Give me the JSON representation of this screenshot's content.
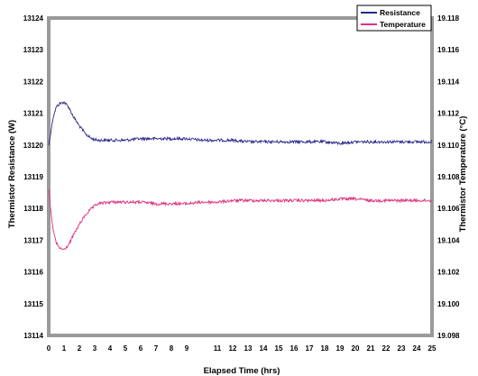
{
  "chart_data": {
    "type": "line",
    "title": "",
    "xlabel": "Elapsed Time (hrs)",
    "ylabel_left": "Thermistor Resistance (W)",
    "ylabel_right": "Thermistor Temperature (°C)",
    "xlim": [
      0,
      25
    ],
    "ylim_left": [
      13114,
      13124
    ],
    "ylim_right": [
      19.098,
      19.118
    ],
    "x_ticks": [
      "0",
      "1",
      "2",
      "3",
      "4",
      "5",
      "6",
      "7",
      "8",
      "9",
      "11",
      "12",
      "13",
      "14",
      "15",
      "16",
      "17",
      "18",
      "19",
      "20",
      "21",
      "22",
      "23",
      "24",
      "25"
    ],
    "x_tick_values": [
      0,
      1,
      2,
      3,
      4,
      5,
      6,
      7,
      8,
      9,
      11,
      12,
      13,
      14,
      15,
      16,
      17,
      18,
      19,
      20,
      21,
      22,
      23,
      24,
      25
    ],
    "y_ticks_left": [
      "13114",
      "13115",
      "13116",
      "13117",
      "13118",
      "13119",
      "13120",
      "13121",
      "13122",
      "13123",
      "13124"
    ],
    "y_ticks_right": [
      "19.098",
      "19.100",
      "19.102",
      "19.104",
      "19.106",
      "19.108",
      "19.110",
      "19.112",
      "19.114",
      "19.116",
      "19.118"
    ],
    "grid": false,
    "legend_position": "top-right",
    "series": [
      {
        "name": "Resistance",
        "axis": "left",
        "color": "#2a2a8a",
        "x": [
          0,
          0.1,
          0.2,
          0.3,
          0.5,
          0.7,
          1.0,
          1.3,
          1.6,
          2.0,
          2.4,
          2.8,
          3.2,
          4,
          5,
          6,
          7,
          8,
          9,
          10,
          11,
          12,
          13,
          14,
          15,
          16,
          17,
          18,
          19,
          20,
          21,
          22,
          23,
          24,
          25
        ],
        "y": [
          13120.0,
          13120.3,
          13120.6,
          13120.9,
          13121.2,
          13121.3,
          13121.35,
          13121.2,
          13120.9,
          13120.6,
          13120.35,
          13120.2,
          13120.15,
          13120.15,
          13120.15,
          13120.2,
          13120.2,
          13120.2,
          13120.2,
          13120.15,
          13120.15,
          13120.15,
          13120.1,
          13120.1,
          13120.1,
          13120.1,
          13120.1,
          13120.1,
          13120.05,
          13120.1,
          13120.1,
          13120.1,
          13120.1,
          13120.1,
          13120.1
        ]
      },
      {
        "name": "Temperature",
        "axis": "right",
        "color": "#e0317f",
        "x": [
          0,
          0.1,
          0.2,
          0.3,
          0.5,
          0.7,
          1.0,
          1.3,
          1.6,
          2.0,
          2.4,
          2.8,
          3.2,
          4,
          5,
          6,
          7,
          8,
          9,
          10,
          11,
          12,
          13,
          14,
          15,
          16,
          17,
          18,
          19,
          20,
          21,
          22,
          23,
          24,
          25
        ],
        "y": [
          19.1072,
          19.1062,
          19.1053,
          19.1046,
          19.1038,
          19.1035,
          19.1034,
          19.1037,
          19.1043,
          19.105,
          19.1056,
          19.106,
          19.1063,
          19.1064,
          19.1064,
          19.1064,
          19.1063,
          19.1063,
          19.1063,
          19.1064,
          19.1064,
          19.1065,
          19.1065,
          19.1065,
          19.1065,
          19.1065,
          19.1065,
          19.1065,
          19.1066,
          19.1066,
          19.1065,
          19.1065,
          19.1065,
          19.1065,
          19.1065
        ]
      }
    ]
  }
}
